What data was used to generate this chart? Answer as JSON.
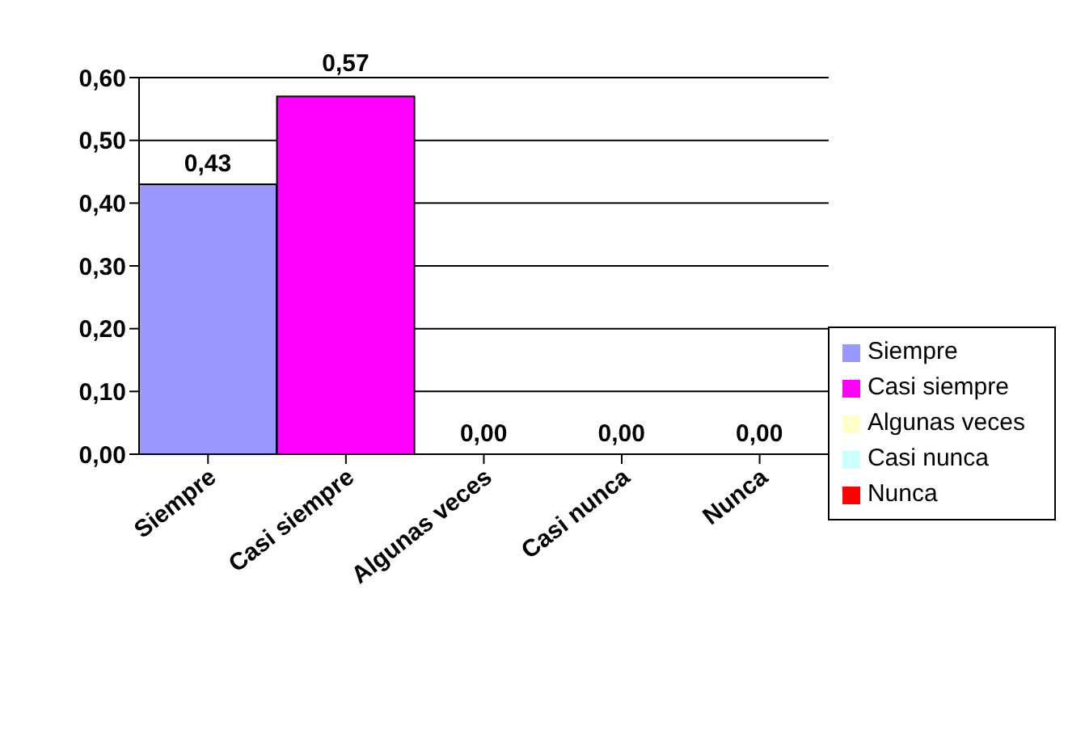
{
  "chart_data": {
    "type": "bar",
    "categories": [
      "Siempre",
      "Casi siempre",
      "Algunas veces",
      "Casi nunca",
      "Nunca"
    ],
    "series": [
      {
        "name": "Siempre",
        "color": "#9999ff",
        "values": [
          0.43,
          null,
          null,
          null,
          null
        ],
        "value_labels": [
          "0,43",
          null,
          null,
          null,
          null
        ]
      },
      {
        "name": "Casi siempre",
        "color": "#ff00ff",
        "values": [
          null,
          0.57,
          null,
          null,
          null
        ],
        "value_labels": [
          null,
          "0,57",
          null,
          null,
          null
        ]
      },
      {
        "name": "Algunas veces",
        "color": "#ffffcc",
        "values": [
          null,
          null,
          0,
          null,
          null
        ],
        "value_labels": [
          null,
          null,
          "0,00",
          null,
          null
        ]
      },
      {
        "name": "Casi nunca",
        "color": "#ccffff",
        "values": [
          null,
          null,
          null,
          0,
          null
        ],
        "value_labels": [
          null,
          null,
          null,
          "0,00",
          null
        ]
      },
      {
        "name": "Nunca",
        "color": "#ff0000",
        "values": [
          null,
          null,
          null,
          null,
          0
        ],
        "value_labels": [
          null,
          null,
          null,
          null,
          "0,00"
        ]
      }
    ],
    "stacked": true,
    "ylim": [
      0,
      0.6
    ],
    "yticks": [
      {
        "value": 0,
        "label": "0,00"
      },
      {
        "value": 0.1,
        "label": "0,10"
      },
      {
        "value": 0.2,
        "label": "0,20"
      },
      {
        "value": 0.3,
        "label": "0,30"
      },
      {
        "value": 0.4,
        "label": "0,40"
      },
      {
        "value": 0.5,
        "label": "0,50"
      },
      {
        "value": 0.6,
        "label": "0,60"
      }
    ],
    "grid": "y",
    "legend": "right"
  }
}
